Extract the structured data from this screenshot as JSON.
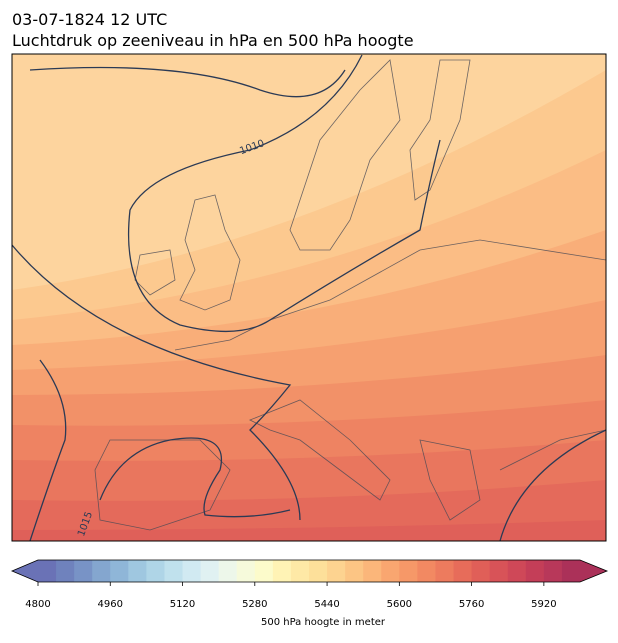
{
  "header": {
    "title_line1": "03-07-1824 12 UTC",
    "title_line2": "Luchtdruk op zeeniveau in hPa en 500 hPa hoogte"
  },
  "map": {
    "contour_labels": [
      "1010",
      "1015"
    ]
  },
  "colorbar": {
    "label": "500 hPa hoogte in meter",
    "lim": [
      4800,
      6000
    ],
    "ticks": [
      4800,
      4960,
      5120,
      5280,
      5440,
      5600,
      5760,
      5920
    ],
    "colors": [
      "#6a72b6",
      "#6f82bd",
      "#7893c6",
      "#84a6cf",
      "#8fb6d8",
      "#9fc7e0",
      "#afd5e7",
      "#c0e1ed",
      "#d1eaf2",
      "#e0f1f2",
      "#edf7ea",
      "#f6fadb",
      "#fcfbcb",
      "#fff3b5",
      "#fee9a6",
      "#fde09a",
      "#fdd390",
      "#fcc584",
      "#fbb67a",
      "#f9a670",
      "#f69868",
      "#f28962",
      "#ed7b5e",
      "#e76c5a",
      "#e05f58",
      "#d85358",
      "#cf4858",
      "#c43e58",
      "#b8385a",
      "#ab3159"
    ]
  }
}
